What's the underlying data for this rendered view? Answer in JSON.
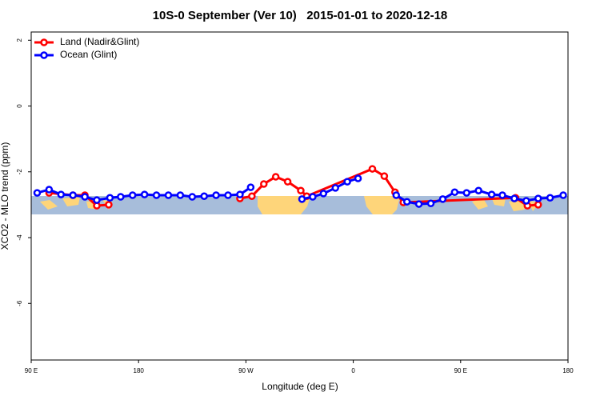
{
  "chart_data": {
    "type": "line",
    "title": "10S-0 September (Ver 10)   2015-01-01 to 2020-12-18",
    "x_label": "Longitude (deg E)",
    "y_label": "XCO2 - MLO trend (ppm)",
    "xlim": [
      90,
      540
    ],
    "xticks": [
      {
        "value": 90,
        "label": "90 E"
      },
      {
        "value": 180,
        "label": "180"
      },
      {
        "value": 270,
        "label": "90 W"
      },
      {
        "value": 360,
        "label": "0"
      },
      {
        "value": 450,
        "label": "90 E"
      },
      {
        "value": 540,
        "label": "180"
      }
    ],
    "ylim": [
      -7.72,
      2.25
    ],
    "yticks": [
      -6,
      -4,
      -2,
      0,
      2
    ],
    "legend": "top-left",
    "series": [
      {
        "name": "Land (Nadir&Glint)",
        "color": "#ff0000",
        "x": [
          105,
          125,
          135,
          145,
          155,
          160,
          265,
          275,
          285,
          295,
          305,
          316,
          321,
          376,
          386,
          395,
          402,
          496,
          506,
          515
        ],
        "values": [
          -2.64,
          -2.71,
          -2.71,
          -3.03,
          -3.0,
          null,
          -2.81,
          -2.74,
          -2.37,
          -2.15,
          -2.3,
          -2.57,
          -2.74,
          -1.91,
          -2.13,
          -2.62,
          -2.93,
          -2.79,
          -3.03,
          -3.0
        ]
      },
      {
        "name": "Ocean (Glint)",
        "color": "#0000ff",
        "x": [
          95,
          105,
          115,
          125,
          135,
          145,
          156,
          165,
          175,
          185,
          195,
          205,
          215,
          225,
          235,
          245,
          255,
          265,
          274,
          300,
          317,
          326,
          335,
          345,
          355,
          364,
          380,
          396,
          405,
          415,
          425,
          435,
          445,
          455,
          465,
          476,
          485,
          495,
          505,
          515,
          525,
          536
        ],
        "values": [
          -2.64,
          -2.54,
          -2.69,
          -2.71,
          -2.76,
          -2.86,
          -2.79,
          -2.76,
          -2.71,
          -2.69,
          -2.71,
          -2.71,
          -2.71,
          -2.76,
          -2.74,
          -2.71,
          -2.71,
          -2.69,
          -2.47,
          null,
          -2.83,
          -2.76,
          -2.66,
          -2.49,
          -2.3,
          -2.2,
          null,
          -2.71,
          -2.91,
          -2.98,
          -2.96,
          -2.83,
          -2.62,
          -2.64,
          -2.57,
          -2.69,
          -2.71,
          -2.81,
          -2.88,
          -2.81,
          -2.79,
          -2.71
        ]
      }
    ]
  }
}
